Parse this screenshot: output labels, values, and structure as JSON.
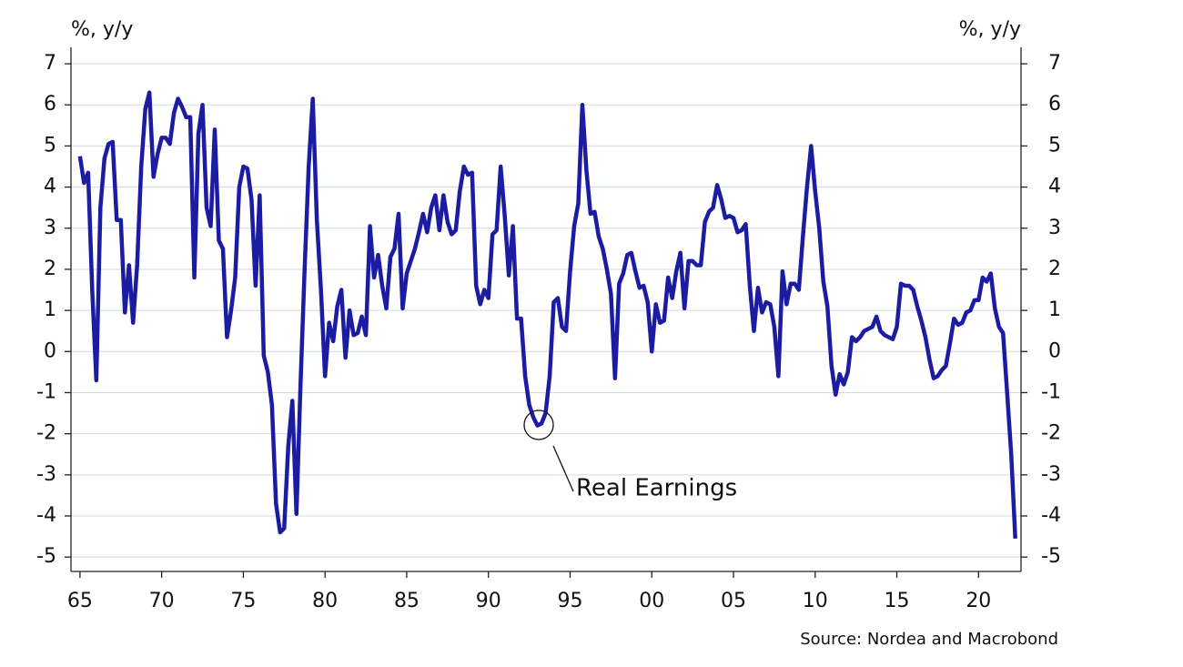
{
  "chart_data": {
    "type": "line",
    "y_label": "%, y/y",
    "y2_label": "%, y/y",
    "source": "Source: Nordea and Macrobond",
    "annotation": "Real Earnings",
    "xlim": [
      1964.45,
      2022.6
    ],
    "xticks": [
      {
        "value": 1965,
        "label": "65"
      },
      {
        "value": 1970,
        "label": "70"
      },
      {
        "value": 1975,
        "label": "75"
      },
      {
        "value": 1980,
        "label": "80"
      },
      {
        "value": 1985,
        "label": "85"
      },
      {
        "value": 1990,
        "label": "90"
      },
      {
        "value": 1995,
        "label": "95"
      },
      {
        "value": 2000,
        "label": "00"
      },
      {
        "value": 2005,
        "label": "05"
      },
      {
        "value": 2010,
        "label": "10"
      },
      {
        "value": 2015,
        "label": "15"
      },
      {
        "value": 2020,
        "label": "20"
      }
    ],
    "ylim": [
      -5.35,
      7.4
    ],
    "yticks": [
      -5,
      -4,
      -3,
      -2,
      -1,
      0,
      1,
      2,
      3,
      4,
      5,
      6,
      7
    ],
    "y2lim": [
      -5.35,
      7.4
    ],
    "y2ticks": [
      -5,
      -4,
      -3,
      -2,
      -1,
      0,
      1,
      2,
      3,
      4,
      5,
      6,
      7
    ],
    "grid": true,
    "x": [
      1965,
      1965.25,
      1965.5,
      1965.75,
      1966,
      1966.25,
      1966.5,
      1966.75,
      1967,
      1967.25,
      1967.5,
      1967.75,
      1968,
      1968.25,
      1968.5,
      1968.75,
      1969,
      1969.25,
      1969.5,
      1969.75,
      1970,
      1970.25,
      1970.5,
      1970.75,
      1971,
      1971.25,
      1971.5,
      1971.75,
      1972,
      1972.25,
      1972.5,
      1972.75,
      1973,
      1973.25,
      1973.5,
      1973.75,
      1974,
      1974.25,
      1974.5,
      1974.75,
      1975,
      1975.25,
      1975.5,
      1975.75,
      1976,
      1976.25,
      1976.5,
      1976.75,
      1977,
      1977.25,
      1977.5,
      1977.75,
      1978,
      1978.25,
      1978.5,
      1978.75,
      1979,
      1979.25,
      1979.5,
      1979.75,
      1980,
      1980.25,
      1980.5,
      1980.75,
      1981,
      1981.25,
      1981.5,
      1981.75,
      1982,
      1982.25,
      1982.5,
      1982.75,
      1983,
      1983.25,
      1983.5,
      1983.75,
      1984,
      1984.25,
      1984.5,
      1984.75,
      1985,
      1985.25,
      1985.5,
      1985.75,
      1986,
      1986.25,
      1986.5,
      1986.75,
      1987,
      1987.25,
      1987.5,
      1987.75,
      1988,
      1988.25,
      1988.5,
      1988.75,
      1989,
      1989.25,
      1989.5,
      1989.75,
      1990,
      1990.25,
      1990.5,
      1990.75,
      1991,
      1991.25,
      1991.5,
      1991.75,
      1992,
      1992.25,
      1992.5,
      1992.75,
      1993,
      1993.25,
      1993.5,
      1993.75,
      1994,
      1994.25,
      1994.5,
      1994.75,
      1995,
      1995.25,
      1995.5,
      1995.75,
      1996,
      1996.25,
      1996.5,
      1996.75,
      1997,
      1997.25,
      1997.5,
      1997.75,
      1998,
      1998.25,
      1998.5,
      1998.75,
      1999,
      1999.25,
      1999.5,
      1999.75,
      2000,
      2000.25,
      2000.5,
      2000.75,
      2001,
      2001.25,
      2001.5,
      2001.75,
      2002,
      2002.25,
      2002.5,
      2002.75,
      2003,
      2003.25,
      2003.5,
      2003.75,
      2004,
      2004.25,
      2004.5,
      2004.75,
      2005,
      2005.25,
      2005.5,
      2005.75,
      2006,
      2006.25,
      2006.5,
      2006.75,
      2007,
      2007.25,
      2007.5,
      2007.75,
      2008,
      2008.25,
      2008.5,
      2008.75,
      2009,
      2009.25,
      2009.5,
      2009.75,
      2010,
      2010.25,
      2010.5,
      2010.75,
      2011,
      2011.25,
      2011.5,
      2011.75,
      2012,
      2012.25,
      2012.5,
      2012.75,
      2013,
      2013.25,
      2013.5,
      2013.75,
      2014,
      2014.25,
      2014.5,
      2014.75,
      2015,
      2015.25,
      2015.5,
      2015.75,
      2016,
      2016.25,
      2016.5,
      2016.75,
      2017,
      2017.25,
      2017.5,
      2017.75,
      2018,
      2018.25,
      2018.5,
      2018.75,
      2019,
      2019.25,
      2019.5,
      2019.75,
      2020,
      2020.25,
      2020.5,
      2020.75,
      2021,
      2021.25,
      2021.5,
      2021.75,
      2022,
      2022.25
    ],
    "series": [
      {
        "color": "#1c1ca3",
        "values": [
          4.75,
          4.1,
          4.35,
          1.5,
          -0.7,
          3.5,
          4.7,
          5.05,
          5.1,
          3.2,
          3.2,
          0.95,
          2.1,
          0.7,
          2.1,
          4.5,
          5.9,
          6.3,
          4.25,
          4.8,
          5.2,
          5.2,
          5.05,
          5.8,
          6.15,
          5.95,
          5.7,
          5.7,
          1.8,
          5.3,
          6.0,
          3.5,
          3.05,
          5.4,
          2.7,
          2.5,
          0.35,
          1.0,
          1.8,
          4.0,
          4.5,
          4.45,
          3.7,
          1.6,
          3.8,
          -0.1,
          -0.5,
          -1.3,
          -3.7,
          -4.4,
          -4.3,
          -2.3,
          -1.2,
          -3.95,
          -0.8,
          2.0,
          4.5,
          6.15,
          3.2,
          1.5,
          -0.6,
          0.7,
          0.25,
          1.1,
          1.5,
          -0.15,
          1.0,
          0.4,
          0.45,
          0.85,
          0.4,
          3.05,
          1.8,
          2.35,
          1.6,
          1.05,
          2.3,
          2.5,
          3.35,
          1.05,
          1.9,
          2.2,
          2.5,
          2.9,
          3.35,
          2.9,
          3.5,
          3.8,
          2.95,
          3.8,
          3.15,
          2.85,
          2.95,
          3.9,
          4.5,
          4.3,
          4.35,
          1.6,
          1.15,
          1.5,
          1.3,
          2.85,
          2.95,
          4.5,
          3.3,
          1.85,
          3.05,
          0.8,
          0.8,
          -0.6,
          -1.3,
          -1.6,
          -1.8,
          -1.75,
          -1.5,
          -0.6,
          1.2,
          1.3,
          0.6,
          0.5,
          1.95,
          3.05,
          3.6,
          6.0,
          4.4,
          3.35,
          3.4,
          2.8,
          2.5,
          2.0,
          1.4,
          -0.65,
          1.65,
          1.9,
          2.35,
          2.4,
          1.95,
          1.55,
          1.6,
          1.2,
          0.0,
          1.15,
          0.7,
          0.75,
          1.8,
          1.3,
          1.95,
          2.4,
          1.05,
          2.2,
          2.2,
          2.1,
          2.1,
          3.15,
          3.4,
          3.5,
          4.05,
          3.7,
          3.25,
          3.3,
          3.25,
          2.9,
          2.95,
          3.1,
          1.6,
          0.5,
          1.55,
          0.95,
          1.2,
          1.15,
          0.6,
          -0.6,
          1.95,
          1.15,
          1.65,
          1.65,
          1.5,
          2.8,
          4.0,
          5.0,
          3.9,
          3.0,
          1.7,
          1.1,
          -0.35,
          -1.05,
          -0.55,
          -0.8,
          -0.5,
          0.35,
          0.25,
          0.35,
          0.5,
          0.55,
          0.6,
          0.85,
          0.5,
          0.4,
          0.35,
          0.3,
          0.6,
          1.65,
          1.6,
          1.6,
          1.5,
          1.1,
          0.75,
          0.35,
          -0.2,
          -0.65,
          -0.6,
          -0.45,
          -0.35,
          0.2,
          0.8,
          0.65,
          0.7,
          0.95,
          1.0,
          1.25,
          1.25,
          1.8,
          1.7,
          1.9,
          1.05,
          0.6,
          0.45,
          -1.0,
          -2.5,
          -4.55
        ]
      }
    ]
  }
}
